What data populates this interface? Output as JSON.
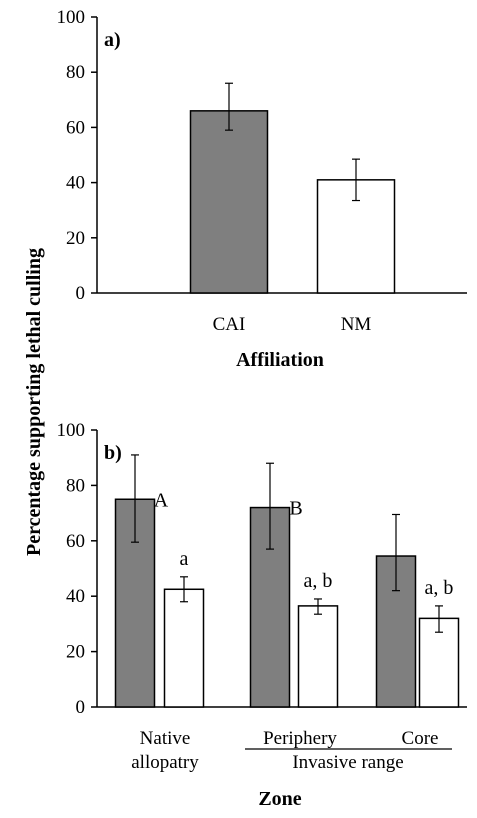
{
  "ylabel": "Percentage supporting lethal culling",
  "colors": {
    "filled": "#7f7f7f",
    "open": "#ffffff",
    "stroke": "#000000"
  },
  "chart_data": [
    {
      "type": "bar",
      "panel_label": "a)",
      "xlabel": "Affiliation",
      "ylim": [
        0,
        100
      ],
      "yticks": [
        0,
        20,
        40,
        60,
        80,
        100
      ],
      "categories": [
        "CAI",
        "NM"
      ],
      "values": [
        66,
        41
      ],
      "err_low": [
        59,
        33.5
      ],
      "err_high": [
        76,
        48.5
      ]
    },
    {
      "type": "bar",
      "panel_label": "b)",
      "xlabel": "Zone",
      "ylim": [
        0,
        100
      ],
      "yticks": [
        0,
        20,
        40,
        60,
        80,
        100
      ],
      "categories": [
        "Native\nallopatry",
        "Periphery",
        "Core"
      ],
      "group_label": "Invasive range",
      "series": [
        {
          "values": [
            75,
            72,
            54.5
          ],
          "err_low": [
            59.5,
            57,
            42
          ],
          "err_high": [
            91,
            88,
            69.5
          ],
          "annotations": [
            "A",
            "B",
            ""
          ]
        },
        {
          "values": [
            42.5,
            36.5,
            32
          ],
          "err_low": [
            38,
            33.5,
            27
          ],
          "err_high": [
            47,
            39,
            36.5
          ],
          "annotations": [
            "a",
            "a, b",
            "a, b"
          ]
        }
      ]
    }
  ]
}
